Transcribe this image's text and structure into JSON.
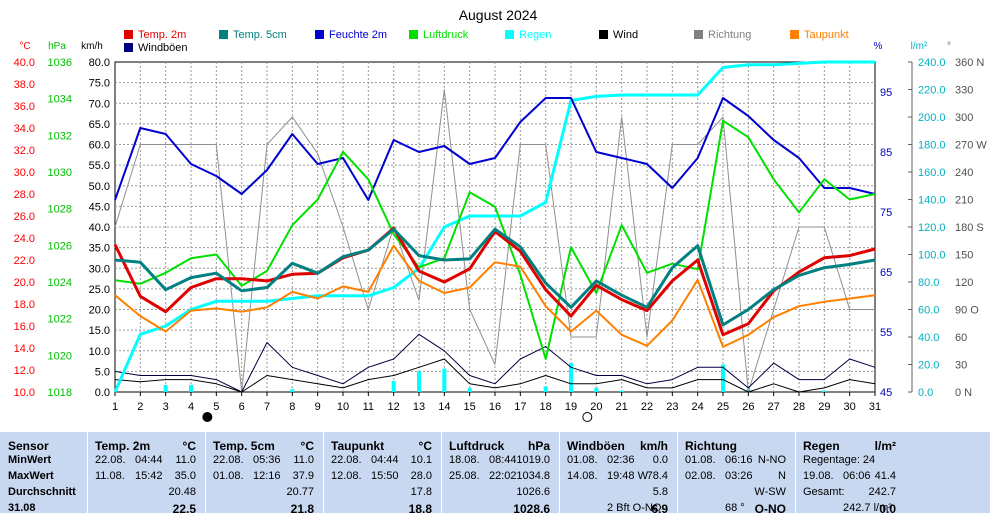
{
  "chart_data": {
    "type": "line",
    "title": "August 2024",
    "x_ticks": [
      1,
      2,
      3,
      4,
      5,
      6,
      7,
      8,
      9,
      10,
      11,
      12,
      13,
      14,
      15,
      16,
      17,
      18,
      19,
      20,
      21,
      22,
      23,
      24,
      25,
      26,
      27,
      28,
      29,
      30,
      31
    ],
    "moon_markers": [
      {
        "day": 5,
        "phase": "new"
      },
      {
        "day": 20,
        "phase": "full"
      }
    ],
    "axes": {
      "temp": {
        "unit": "°C",
        "range": [
          10,
          40
        ],
        "ticks": [
          "10.0",
          "12.0",
          "14.0",
          "16.0",
          "18.0",
          "20.0",
          "22.0",
          "24.0",
          "26.0",
          "28.0",
          "30.0",
          "32.0",
          "34.0",
          "36.0",
          "38.0",
          "40.0"
        ],
        "color": "#ff0000"
      },
      "pressure": {
        "unit": "hPa",
        "range": [
          1018,
          1036
        ],
        "ticks": [
          "1018",
          "1020",
          "1022",
          "1024",
          "1026",
          "1028",
          "1030",
          "1032",
          "1034",
          "1036"
        ],
        "color": "#00c000"
      },
      "wind": {
        "unit": "km/h",
        "range": [
          0,
          80
        ],
        "ticks": [
          "0.0",
          "5.0",
          "10.0",
          "15.0",
          "20.0",
          "25.0",
          "30.0",
          "35.0",
          "40.0",
          "45.0",
          "50.0",
          "55.0",
          "60.0",
          "65.0",
          "70.0",
          "75.0",
          "80.0"
        ],
        "color": "#000000"
      },
      "humidity": {
        "unit": "%",
        "ticks": [
          "45",
          "55",
          "65",
          "75",
          "85",
          "95"
        ],
        "color": "#0000c0"
      },
      "rain": {
        "unit": "l/m²",
        "range": [
          0,
          240
        ],
        "ticks": [
          "0.0",
          "20.0",
          "40.0",
          "60.0",
          "80.0",
          "100.0",
          "120.0",
          "140.0",
          "160.0",
          "180.0",
          "200.0",
          "220.0",
          "240.0"
        ],
        "color": "#00b0c0"
      },
      "direction": {
        "unit": "°",
        "ticks": [
          "0 N",
          "30",
          "60",
          "90 O",
          "120",
          "150",
          "180 S",
          "210",
          "240",
          "270 W",
          "300",
          "330",
          "360 N"
        ],
        "color": "#606060"
      }
    },
    "legend": [
      {
        "name": "Temp. 2m",
        "color": "#e00000"
      },
      {
        "name": "Temp. 5cm",
        "color": "#008080"
      },
      {
        "name": "Feuchte 2m",
        "color": "#0000d0"
      },
      {
        "name": "Luftdruck",
        "color": "#00e000"
      },
      {
        "name": "Regen",
        "color": "#00ffff"
      },
      {
        "name": "Wind",
        "color": "#000000"
      },
      {
        "name": "Richtung",
        "color": "#808080"
      },
      {
        "name": "Taupunkt",
        "color": "#ff8000"
      },
      {
        "name": "Windböen",
        "color": "#000080"
      }
    ],
    "series": {
      "temp2m": [
        23.4,
        18.7,
        17.3,
        19.5,
        20.3,
        20.3,
        20.1,
        20.7,
        20.8,
        22.2,
        22.9,
        24.9,
        21.0,
        20.0,
        21.2,
        24.6,
        22.8,
        19.3,
        16.9,
        19.7,
        18.4,
        17.4,
        20.1,
        22.0,
        15.2,
        16.2,
        19.2,
        20.9,
        22.2,
        22.4,
        23.0
      ],
      "temp5cm": [
        22.0,
        21.8,
        19.3,
        20.4,
        20.8,
        19.2,
        19.5,
        21.7,
        20.8,
        22.3,
        22.9,
        24.8,
        22.4,
        22.0,
        22.1,
        24.8,
        23.2,
        19.9,
        17.7,
        20.1,
        18.8,
        17.7,
        21.3,
        23.3,
        16.1,
        17.5,
        19.3,
        20.6,
        21.3,
        21.6,
        22.0
      ],
      "dewpoint": [
        18.8,
        16.9,
        15.5,
        17.4,
        17.6,
        17.3,
        17.7,
        19.1,
        18.5,
        19.6,
        19.1,
        23.3,
        20.1,
        19.0,
        19.5,
        21.8,
        21.4,
        17.8,
        15.5,
        17.4,
        15.2,
        14.2,
        16.5,
        20.2,
        14.1,
        15.2,
        16.8,
        17.8,
        18.2,
        18.5,
        18.8
      ],
      "pressure": [
        1024.1,
        1023.9,
        1024.5,
        1025.3,
        1025.5,
        1023.8,
        1024.6,
        1027.1,
        1028.5,
        1031.1,
        1029.6,
        1026.6,
        1024.8,
        1025.3,
        1028.9,
        1028.1,
        1024.4,
        1019.8,
        1025.9,
        1023.4,
        1027.1,
        1024.5,
        1025.0,
        1024.7,
        1032.8,
        1031.9,
        1029.6,
        1027.8,
        1029.6,
        1028.5,
        1028.8
      ],
      "humidity": [
        77,
        89,
        88,
        83,
        81,
        78,
        82,
        88,
        83,
        84,
        77,
        87,
        85,
        86,
        83,
        84,
        90,
        94,
        94,
        85,
        84,
        83,
        79,
        84,
        94,
        91,
        87,
        84,
        79,
        79,
        78
      ],
      "rain_cumulative": [
        0,
        42,
        48,
        60,
        66,
        66,
        66,
        68,
        70,
        70,
        70,
        76,
        90,
        120,
        128,
        128,
        128,
        138,
        212,
        215,
        216,
        216,
        216,
        216,
        236,
        238,
        238,
        239,
        240,
        240,
        240
      ],
      "rain_daily": [
        0,
        0,
        5,
        5,
        0,
        0,
        0,
        2,
        0,
        0,
        0,
        8,
        15,
        17,
        3,
        0,
        0,
        4,
        21,
        3,
        1,
        0,
        0,
        0,
        20,
        2,
        0,
        0,
        1,
        0,
        0
      ],
      "wind": [
        3,
        2.5,
        3,
        3,
        2,
        0,
        4,
        3,
        2,
        1,
        3,
        4,
        6,
        8,
        2,
        1,
        2,
        4,
        2,
        2,
        3,
        1,
        1,
        3,
        3,
        0,
        2,
        0,
        1,
        3,
        2
      ],
      "gusts": [
        5,
        4,
        4,
        4,
        3,
        0,
        12,
        6,
        4,
        2,
        6,
        8,
        14,
        10,
        4,
        2,
        8,
        11,
        6,
        4,
        4,
        2,
        3,
        6,
        6,
        1,
        7,
        3,
        3,
        8,
        6
      ],
      "direction": [
        180,
        270,
        270,
        270,
        270,
        0,
        270,
        300,
        260,
        180,
        90,
        180,
        100,
        330,
        90,
        30,
        270,
        270,
        60,
        60,
        300,
        60,
        270,
        270,
        300,
        0,
        90,
        180,
        180,
        90,
        90
      ]
    }
  },
  "table": {
    "sensors_col": {
      "header": "Sensor",
      "rows": [
        "MinWert",
        "MaxWert",
        "Durchschnitt",
        "31.08"
      ]
    },
    "groups": [
      {
        "label": "Temp. 2m",
        "unit": "°C",
        "rows": [
          [
            "22.08.",
            "04:44",
            "11.0"
          ],
          [
            "11.08.",
            "15:42",
            "35.0"
          ],
          [
            "",
            "",
            "20.48"
          ],
          [
            "",
            "",
            "22.5"
          ]
        ]
      },
      {
        "label": "Temp. 5cm",
        "unit": "°C",
        "rows": [
          [
            "22.08.",
            "05:36",
            "11.0"
          ],
          [
            "01.08.",
            "12:16",
            "37.9"
          ],
          [
            "",
            "",
            "20.77"
          ],
          [
            "",
            "",
            "21.8"
          ]
        ]
      },
      {
        "label": "Taupunkt",
        "unit": "°C",
        "rows": [
          [
            "22.08.",
            "04:44",
            "10.1"
          ],
          [
            "12.08.",
            "15:50",
            "28.0"
          ],
          [
            "",
            "",
            "17.8"
          ],
          [
            "",
            "",
            "18.8"
          ]
        ]
      },
      {
        "label": "Luftdruck",
        "unit": "hPa",
        "rows": [
          [
            "18.08.",
            "08:44",
            "1019.0"
          ],
          [
            "25.08.",
            "22:02",
            "1034.8"
          ],
          [
            "",
            "",
            "1026.6"
          ],
          [
            "",
            "",
            "1028.6"
          ]
        ]
      },
      {
        "label": "Windböen",
        "unit": "km/h",
        "rows": [
          [
            "01.08.",
            "02:36",
            "0.0"
          ],
          [
            "14.08.",
            "19:48 W",
            "78.4"
          ],
          [
            "",
            "",
            "5.8"
          ],
          [
            "",
            "2 Bft O-NO",
            "6.9"
          ]
        ]
      },
      {
        "label": "Richtung",
        "unit": "",
        "rows": [
          [
            "01.08.",
            "06:16",
            "N-NO"
          ],
          [
            "02.08.",
            "03:26",
            "N"
          ],
          [
            "",
            "",
            "W-SW"
          ],
          [
            "",
            "68 °",
            "O-NO"
          ]
        ]
      },
      {
        "label": "Regen",
        "unit": "l/m²",
        "rows": [
          [
            "Regentage: 24",
            "",
            ""
          ],
          [
            "19.08.",
            "06:06",
            "41.4"
          ],
          [
            "Gesamt:",
            "",
            "242.7"
          ],
          [
            "",
            "242.7 l/m²",
            "0.0"
          ]
        ]
      }
    ]
  }
}
